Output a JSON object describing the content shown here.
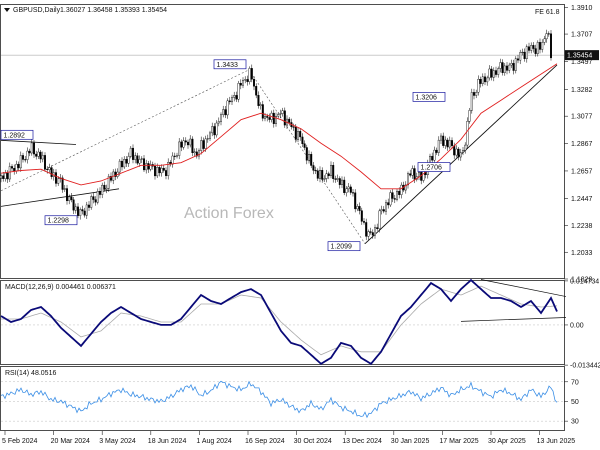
{
  "header": {
    "title": "GBPUSD,Daily",
    "ohlc": "1.36027 1.36458 1.35393 1.35454",
    "fe_label": "FE 61.8",
    "watermark": "Action Forex"
  },
  "colors": {
    "candle": "#000000",
    "ma": "#e02020",
    "macd": "#0a0a78",
    "signal": "#aaaaaa",
    "rsi": "#3a8ee6",
    "box_border": "#1a1aa0"
  },
  "chart_data": [
    {
      "type": "candlestick",
      "ylim": [
        1.1828,
        1.393
      ],
      "yticks": [
        "1.3910",
        "1.3707",
        "1.3497",
        "1.3282",
        "1.3077",
        "1.2867",
        "1.2657",
        "1.2447",
        "1.2238",
        "1.2033",
        "1.1828"
      ],
      "current_price_label": "1.35454",
      "current_price": 1.35454,
      "series": [
        {
          "name": "close",
          "x": [
            0,
            10,
            20,
            30,
            40,
            50,
            58,
            70,
            80,
            90,
            100,
            110,
            120,
            130,
            140,
            150,
            160,
            166,
            175,
            185,
            195,
            205,
            215,
            225,
            235,
            242,
            250,
            260,
            270,
            280,
            290,
            300,
            310,
            320,
            330,
            340,
            350,
            360,
            368,
            375,
            380,
            390,
            400,
            410,
            420,
            430,
            440,
            450,
            460,
            465,
            470,
            480,
            490,
            500,
            510,
            520,
            530,
            540,
            546,
            550
          ],
          "values": [
            1.26,
            1.266,
            1.273,
            1.283,
            1.276,
            1.263,
            1.259,
            1.241,
            1.232,
            1.242,
            1.25,
            1.26,
            1.27,
            1.279,
            1.272,
            1.268,
            1.265,
            1.267,
            1.28,
            1.29,
            1.278,
            1.29,
            1.3,
            1.315,
            1.325,
            1.335,
            1.34,
            1.31,
            1.305,
            1.31,
            1.3,
            1.29,
            1.27,
            1.26,
            1.265,
            1.255,
            1.25,
            1.23,
            1.215,
            1.222,
            1.235,
            1.245,
            1.25,
            1.265,
            1.26,
            1.275,
            1.29,
            1.285,
            1.276,
            1.292,
            1.322,
            1.335,
            1.34,
            1.345,
            1.345,
            1.355,
            1.36,
            1.36,
            1.375,
            1.3545
          ]
        },
        {
          "name": "moving_average",
          "x": [
            0,
            20,
            40,
            60,
            80,
            100,
            120,
            140,
            160,
            180,
            200,
            220,
            240,
            260,
            280,
            300,
            320,
            340,
            360,
            380,
            400,
            420,
            440,
            460,
            480,
            500,
            520,
            540,
            556
          ],
          "values": [
            1.264,
            1.266,
            1.267,
            1.26,
            1.255,
            1.258,
            1.264,
            1.27,
            1.27,
            1.272,
            1.279,
            1.292,
            1.305,
            1.31,
            1.305,
            1.298,
            1.287,
            1.277,
            1.265,
            1.252,
            1.252,
            1.262,
            1.275,
            1.29,
            1.31,
            1.32,
            1.33,
            1.34,
            1.348
          ]
        }
      ],
      "annotations": [
        {
          "text": "1.2892",
          "x": 0,
          "y": 1.2892
        },
        {
          "text": "1.2298",
          "x": 82,
          "y": 1.2298
        },
        {
          "text": "1.3433",
          "x": 248,
          "y": 1.3433
        },
        {
          "text": "1.2099",
          "x": 364,
          "y": 1.2099
        },
        {
          "text": "1.2706",
          "x": 454,
          "y": 1.2706
        },
        {
          "text": "1.3206",
          "x": 460,
          "y": 1.3206
        }
      ]
    },
    {
      "type": "line",
      "name": "MACD(12,26,9) 0.004461 0.006371",
      "ylim": [
        -0.0134,
        0.0147
      ],
      "yticks": [
        "0.014734",
        "0.00",
        "-0.013442"
      ],
      "series": [
        {
          "name": "macd",
          "x": [
            0,
            10,
            20,
            30,
            40,
            50,
            60,
            70,
            80,
            90,
            100,
            110,
            120,
            130,
            140,
            150,
            160,
            170,
            180,
            190,
            200,
            210,
            220,
            230,
            240,
            250,
            260,
            270,
            280,
            290,
            300,
            310,
            320,
            330,
            340,
            350,
            360,
            370,
            380,
            390,
            400,
            410,
            420,
            430,
            440,
            450,
            460,
            470,
            480,
            490,
            500,
            510,
            520,
            530,
            540,
            550,
            556
          ],
          "values": [
            0.003,
            0.001,
            0.002,
            0.005,
            0.006,
            0.003,
            -0.001,
            -0.004,
            -0.007,
            -0.003,
            0.001,
            0.004,
            0.006,
            0.004,
            0.002,
            0.001,
            0.0,
            0.0,
            0.002,
            0.006,
            0.01,
            0.008,
            0.007,
            0.009,
            0.011,
            0.012,
            0.01,
            0.004,
            -0.002,
            -0.006,
            -0.007,
            -0.01,
            -0.013,
            -0.011,
            -0.006,
            -0.007,
            -0.011,
            -0.013,
            -0.009,
            -0.003,
            0.003,
            0.006,
            0.01,
            0.014,
            0.012,
            0.008,
            0.012,
            0.015,
            0.012,
            0.009,
            0.009,
            0.008,
            0.006,
            0.008,
            0.004,
            0.009,
            0.0045
          ]
        },
        {
          "name": "signal",
          "x": [
            0,
            20,
            40,
            60,
            80,
            100,
            120,
            140,
            160,
            180,
            200,
            220,
            240,
            260,
            280,
            300,
            320,
            340,
            360,
            380,
            400,
            420,
            440,
            460,
            480,
            500,
            520,
            540,
            556
          ],
          "values": [
            0.002,
            0.002,
            0.004,
            0.001,
            -0.004,
            -0.002,
            0.004,
            0.003,
            0.001,
            0.001,
            0.007,
            0.007,
            0.01,
            0.009,
            0.001,
            -0.005,
            -0.01,
            -0.007,
            -0.009,
            -0.009,
            0.0,
            0.007,
            0.012,
            0.01,
            0.013,
            0.01,
            0.007,
            0.006,
            0.0064
          ]
        }
      ]
    },
    {
      "type": "line",
      "name": "RSI(14) 48.0516",
      "ylim": [
        20,
        85
      ],
      "yticks": [
        "70",
        "50",
        "30"
      ],
      "series": [
        {
          "name": "rsi",
          "x": [
            0,
            10,
            20,
            30,
            40,
            50,
            60,
            70,
            80,
            90,
            100,
            110,
            120,
            130,
            140,
            150,
            160,
            170,
            180,
            190,
            200,
            210,
            220,
            230,
            240,
            250,
            260,
            270,
            280,
            290,
            300,
            310,
            320,
            330,
            340,
            350,
            360,
            370,
            380,
            390,
            400,
            410,
            420,
            430,
            440,
            450,
            460,
            470,
            480,
            490,
            500,
            510,
            520,
            530,
            540,
            550,
            556
          ],
          "values": [
            55,
            58,
            62,
            57,
            60,
            52,
            50,
            45,
            40,
            48,
            52,
            58,
            62,
            57,
            55,
            52,
            50,
            55,
            62,
            66,
            56,
            61,
            70,
            65,
            62,
            68,
            60,
            48,
            52,
            45,
            40,
            48,
            42,
            52,
            44,
            40,
            35,
            38,
            48,
            52,
            56,
            60,
            53,
            58,
            64,
            56,
            62,
            66,
            60,
            55,
            62,
            58,
            52,
            62,
            55,
            65,
            48
          ]
        }
      ]
    }
  ],
  "x_axis": {
    "labels": [
      "5 Feb 2024",
      "20 Mar 2024",
      "3 May 2024",
      "18 Jun 2024",
      "1 Aug 2024",
      "16 Sep 2024",
      "30 Oct 2024",
      "13 Dec 2024",
      "30 Jan 2025",
      "17 Mar 2025",
      "30 Apr 2025",
      "13 Jun 2025"
    ]
  },
  "panels": {
    "macd_title": "MACD(12,26,9) 0.004461 0.006371",
    "rsi_title": "RSI(14) 48.0516"
  }
}
